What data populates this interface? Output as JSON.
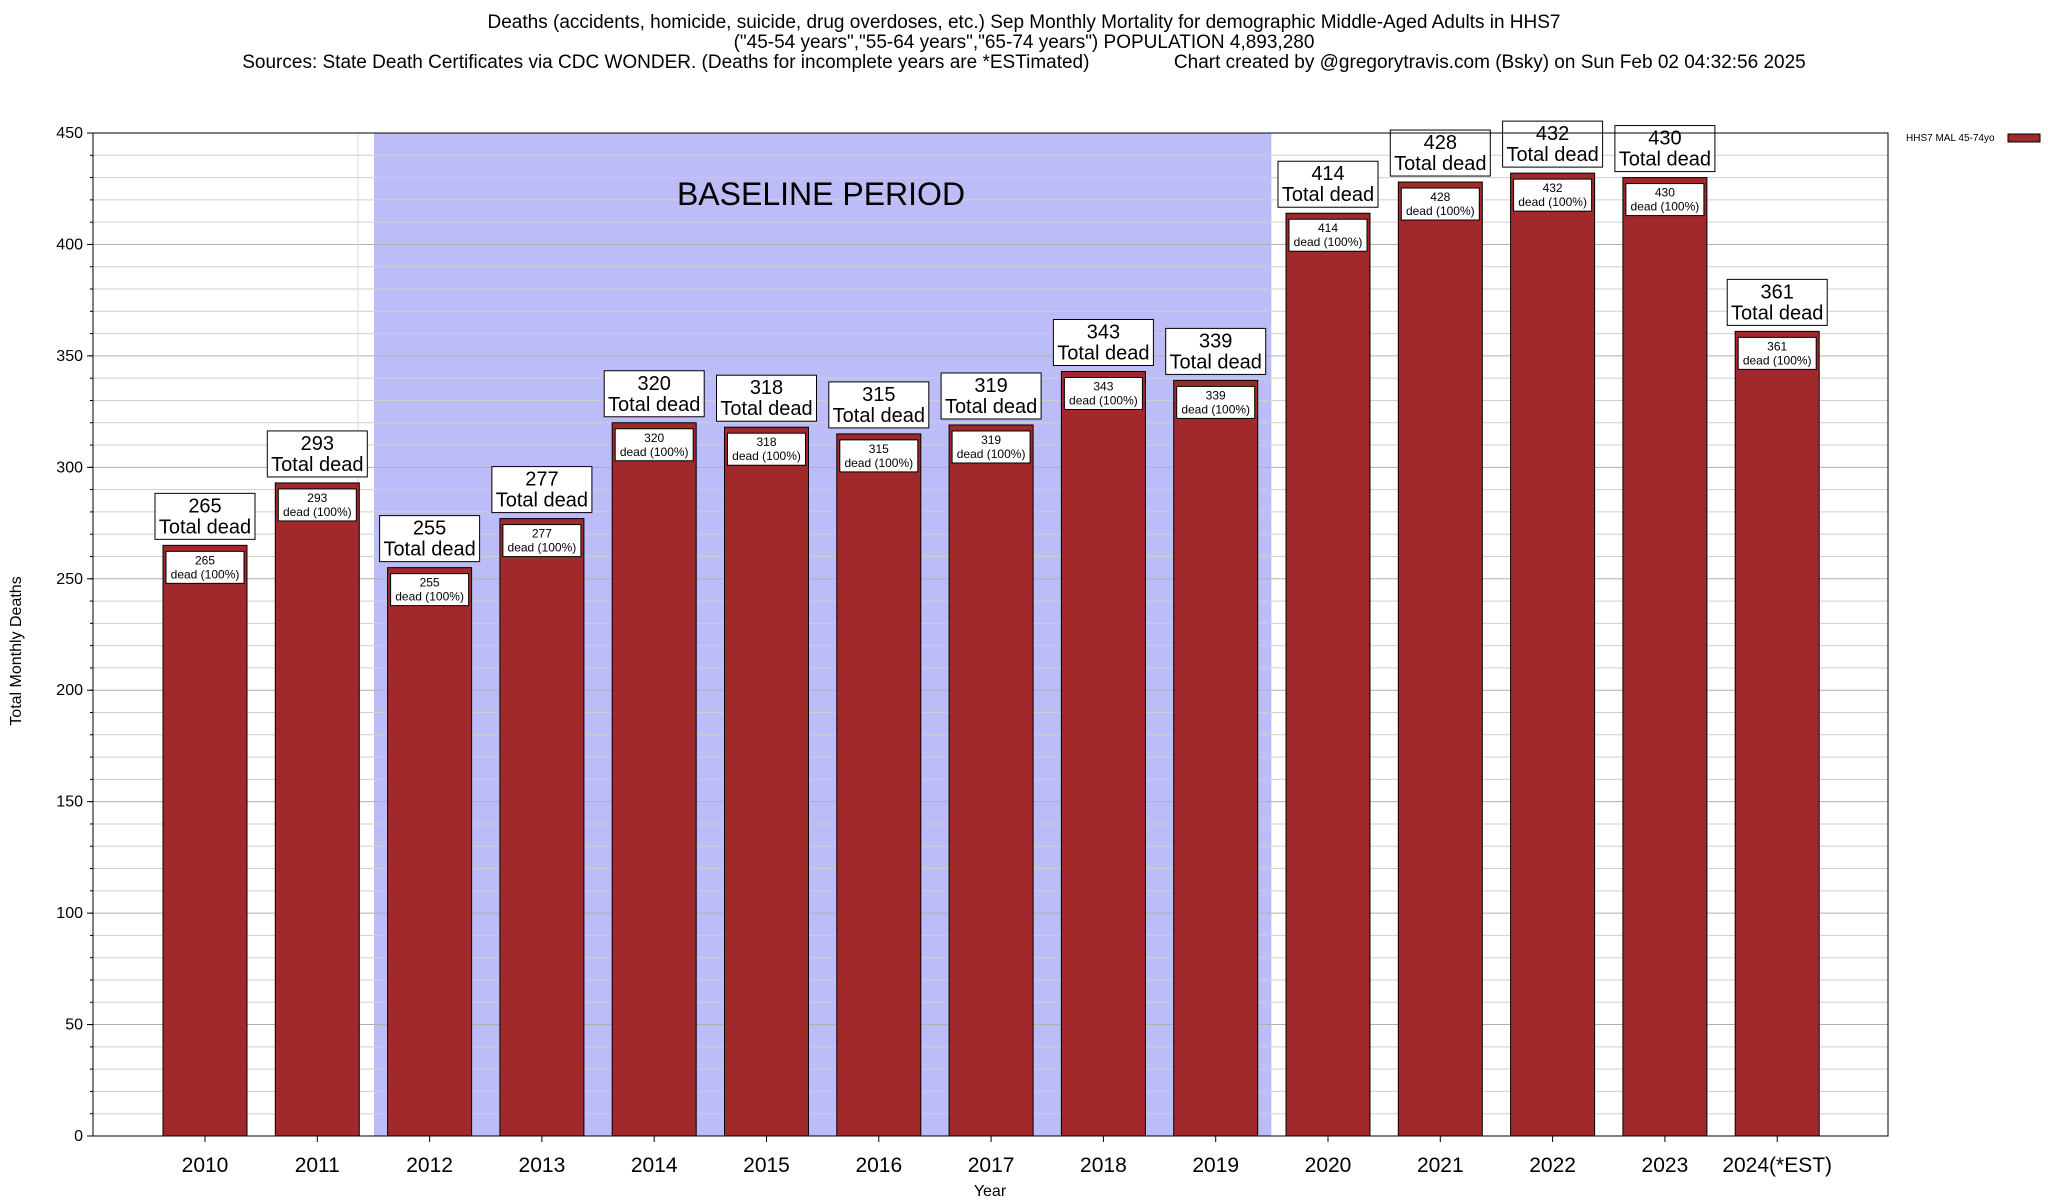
{
  "chart_data": {
    "type": "bar",
    "title_lines": [
      "Deaths (accidents, homicide, suicide, drug overdoses, etc.) Sep Monthly Mortality for demographic Middle-Aged Adults in HHS7",
      "(\"45-54 years\",\"55-64 years\",\"65-74 years\") POPULATION 4,893,280",
      "Sources: State Death Certificates via CDC WONDER. (Deaths for incomplete years are *ESTimated)                Chart created by @gregorytravis.com (Bsky) on Sun Feb 02 04:32:56 2025"
    ],
    "xlabel": "Year",
    "ylabel": "Total Monthly Deaths",
    "ylim": [
      0,
      450
    ],
    "yticks": [
      0,
      50,
      100,
      150,
      200,
      250,
      300,
      350,
      400,
      450
    ],
    "categories": [
      "2010",
      "2011",
      "2012",
      "2013",
      "2014",
      "2015",
      "2016",
      "2017",
      "2018",
      "2019",
      "2020",
      "2021",
      "2022",
      "2023",
      "2024(*EST)"
    ],
    "series": [
      {
        "name": "HHS7 MAL 45-74yo",
        "color": "#a1282b",
        "values": [
          265,
          293,
          255,
          277,
          320,
          318,
          315,
          319,
          343,
          339,
          414,
          428,
          432,
          430,
          361
        ]
      }
    ],
    "bar_label_top": [
      "265",
      "293",
      "255",
      "277",
      "320",
      "318",
      "315",
      "319",
      "343",
      "339",
      "414",
      "428",
      "432",
      "430",
      "361"
    ],
    "bar_label_total": "Total dead",
    "bar_label_inner_value": [
      "265",
      "293",
      "255",
      "277",
      "320",
      "318",
      "315",
      "319",
      "343",
      "339",
      "414",
      "428",
      "432",
      "430",
      "361"
    ],
    "bar_label_inner_text": "dead (100%)",
    "baseline_period": {
      "label": "BASELINE PERIOD",
      "start": "2012",
      "end": "2019",
      "color": "#bcbcf8"
    },
    "legend_placement": "top-right",
    "grid": true,
    "minor_grid": true
  }
}
